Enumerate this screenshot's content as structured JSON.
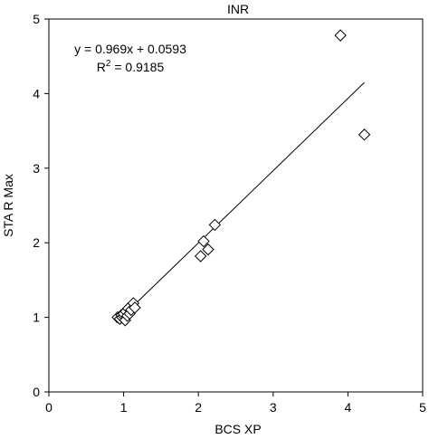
{
  "chart_data": {
    "type": "scatter",
    "title": "INR",
    "xlabel": "BCS XP",
    "ylabel": "STA R Max",
    "xlim": [
      0,
      5
    ],
    "ylim": [
      0,
      5
    ],
    "xticks": [
      "0",
      "1",
      "2",
      "3",
      "4",
      "5"
    ],
    "yticks": [
      "0",
      "1",
      "2",
      "3",
      "4",
      "5"
    ],
    "grid": false,
    "points": [
      {
        "x": 0.92,
        "y": 1.0
      },
      {
        "x": 0.95,
        "y": 0.98
      },
      {
        "x": 0.97,
        "y": 1.03
      },
      {
        "x": 0.98,
        "y": 1.0
      },
      {
        "x": 1.0,
        "y": 1.02
      },
      {
        "x": 1.0,
        "y": 1.05
      },
      {
        "x": 1.02,
        "y": 0.96
      },
      {
        "x": 1.03,
        "y": 1.08
      },
      {
        "x": 1.05,
        "y": 1.02
      },
      {
        "x": 1.06,
        "y": 1.12
      },
      {
        "x": 1.08,
        "y": 1.05
      },
      {
        "x": 1.1,
        "y": 1.1
      },
      {
        "x": 1.13,
        "y": 1.19
      },
      {
        "x": 1.15,
        "y": 1.13
      },
      {
        "x": 2.03,
        "y": 1.82
      },
      {
        "x": 2.07,
        "y": 2.02
      },
      {
        "x": 2.13,
        "y": 1.91
      },
      {
        "x": 2.22,
        "y": 2.24
      },
      {
        "x": 3.9,
        "y": 4.78
      },
      {
        "x": 4.22,
        "y": 3.45
      }
    ],
    "trendline": {
      "slope": 0.969,
      "intercept": 0.0593,
      "x_range": [
        0.9,
        4.22
      ]
    },
    "annotations": {
      "equation": "y = 0.969x + 0.0593",
      "r2_prefix": "R",
      "r2_sup": "2",
      "r2_value": " = 0.9185"
    }
  }
}
